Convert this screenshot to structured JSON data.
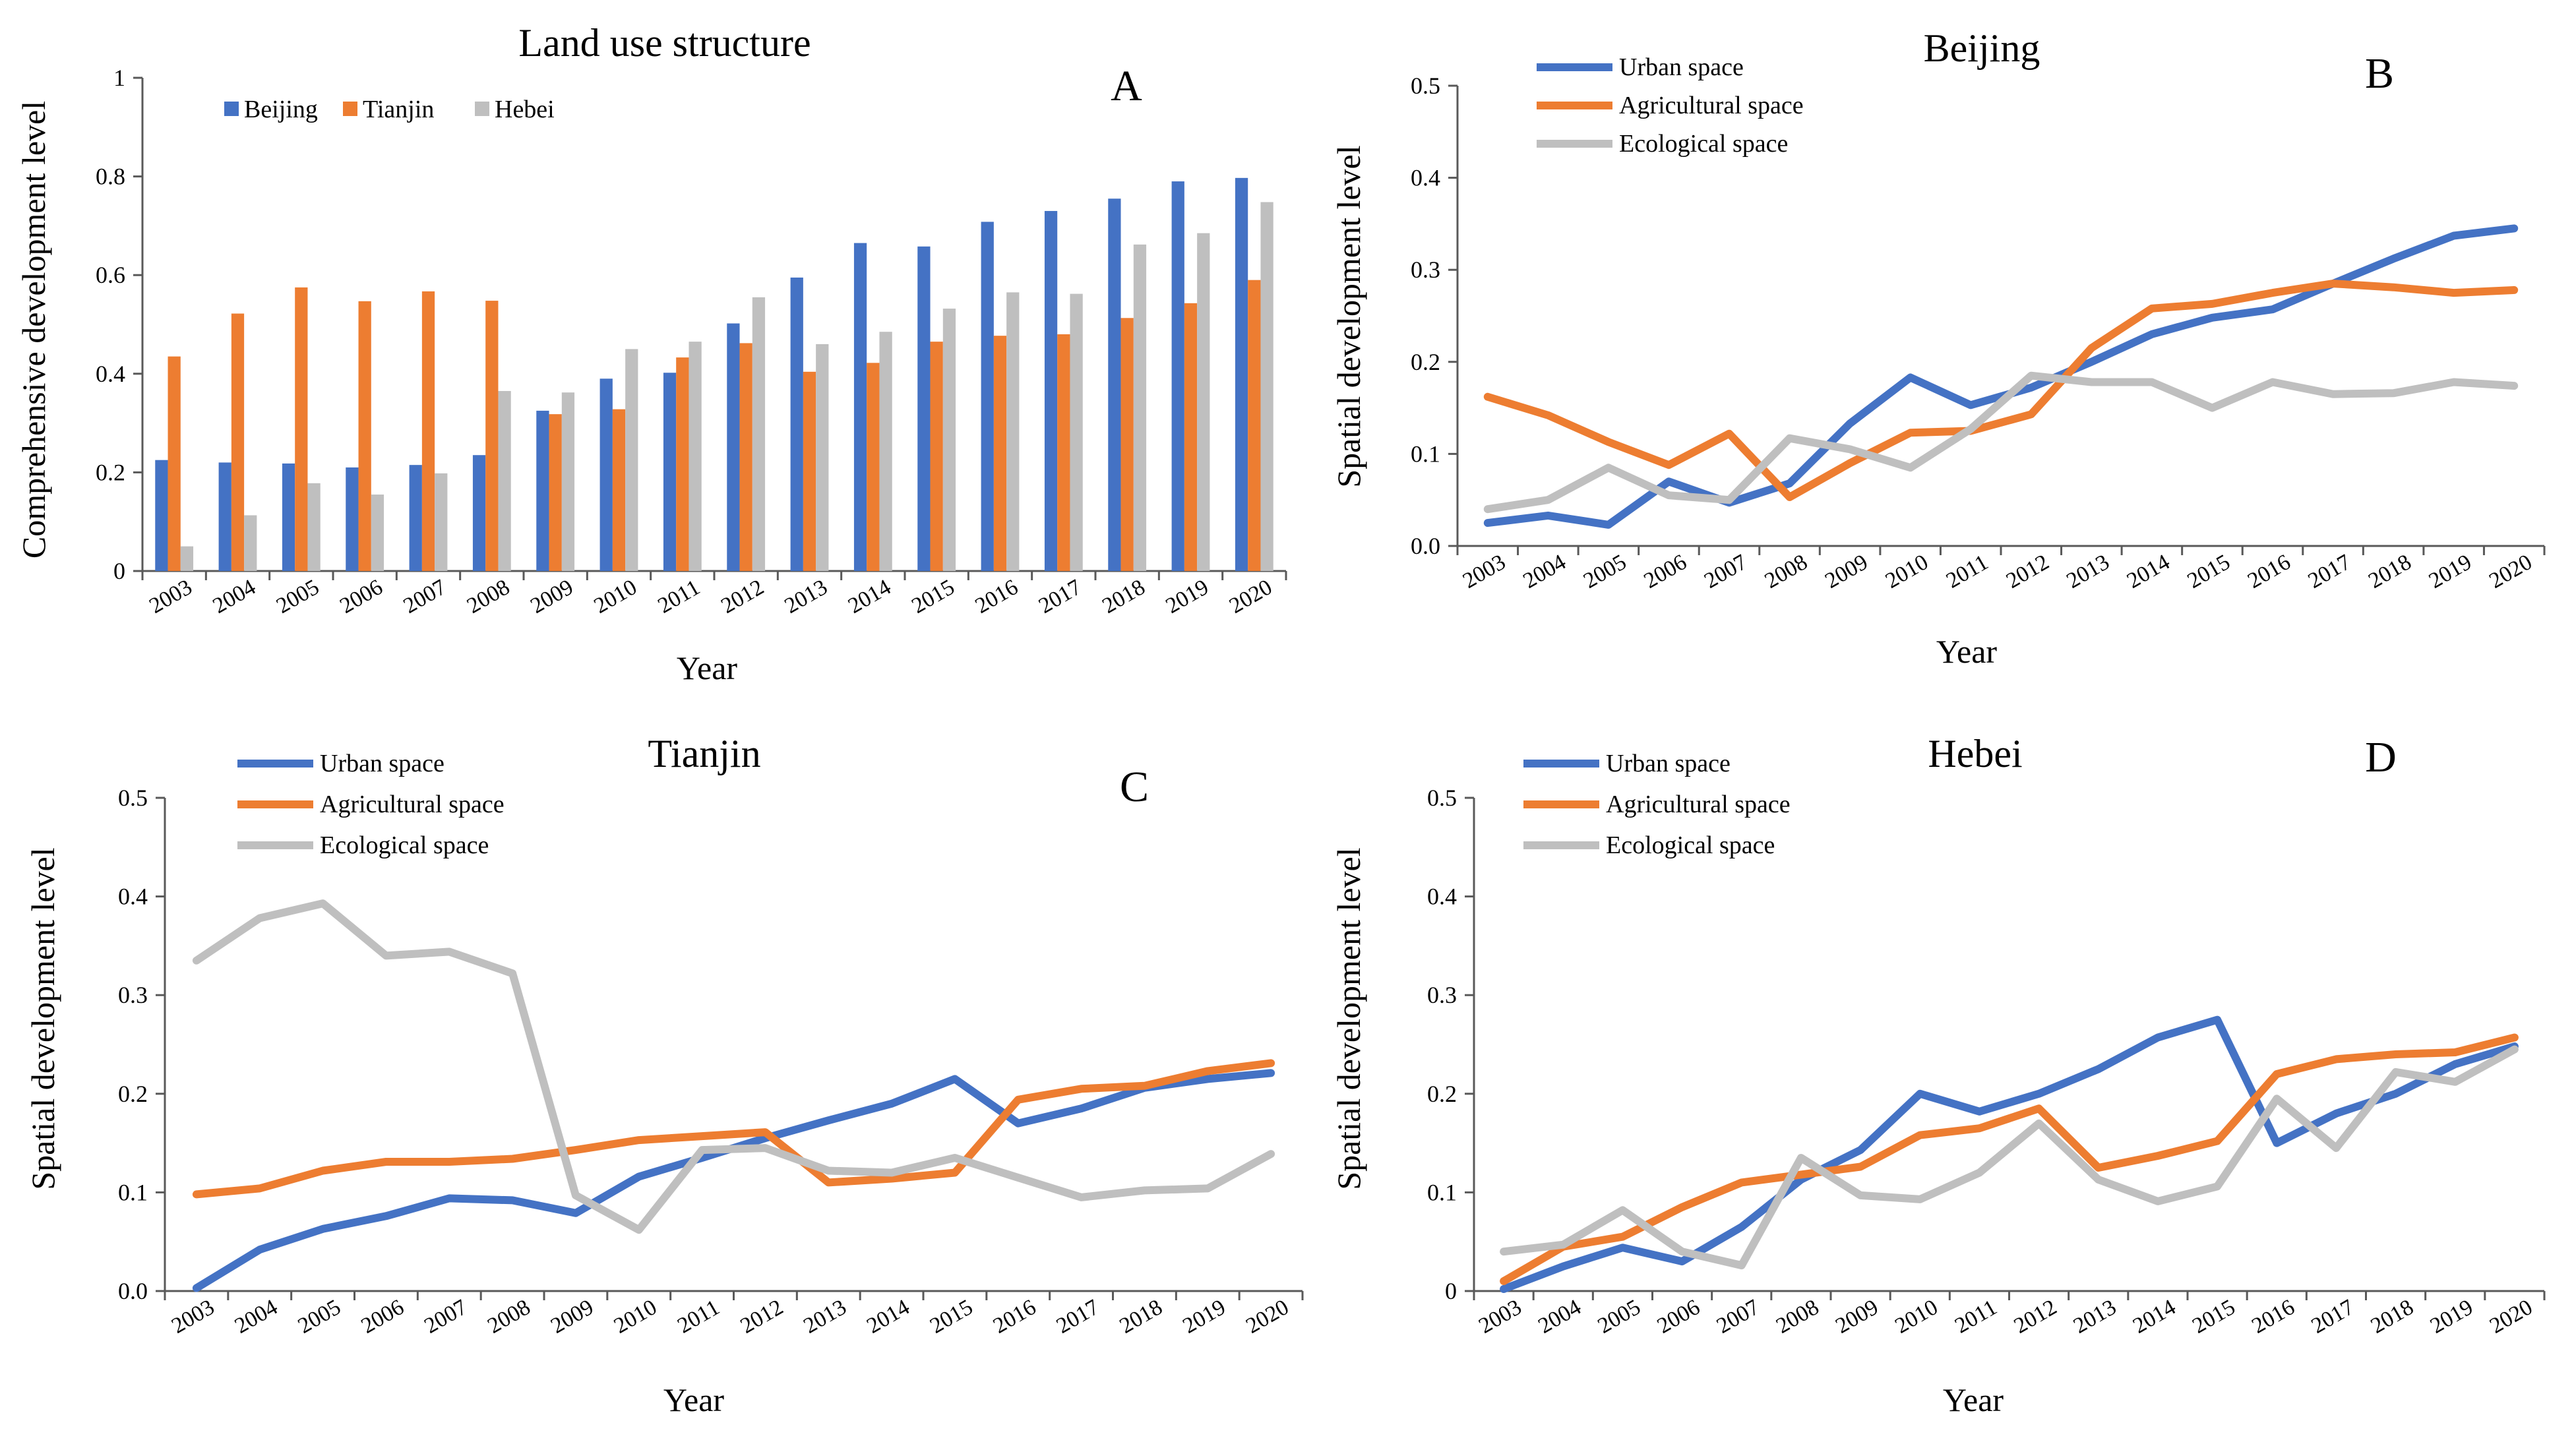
{
  "colors": {
    "beijing": "#4472C4",
    "tianjin": "#ED7D31",
    "hebei": "#BFBFBF",
    "urban": "#4472C4",
    "agricultural": "#ED7D31",
    "ecological": "#BFBFBF",
    "axis": "#595959"
  },
  "chart_data": [
    {
      "id": "A",
      "type": "bar",
      "panel_letter": "A",
      "title": "Land use structure",
      "xlabel": "Year",
      "ylabel": "Comprehensive development level",
      "ylim": [
        0,
        1
      ],
      "yticks": [
        "0",
        "0.2",
        "0.4",
        "0.6",
        "0.8",
        "1"
      ],
      "grid": false,
      "legend_position": "top-left",
      "categories": [
        "2003",
        "2004",
        "2005",
        "2006",
        "2007",
        "2008",
        "2009",
        "2010",
        "2011",
        "2012",
        "2013",
        "2014",
        "2015",
        "2016",
        "2017",
        "2018",
        "2019",
        "2020"
      ],
      "series": [
        {
          "name": "Beijing",
          "color_key": "beijing",
          "values": [
            0.225,
            0.22,
            0.218,
            0.21,
            0.215,
            0.235,
            0.325,
            0.39,
            0.402,
            0.502,
            0.595,
            0.665,
            0.658,
            0.708,
            0.73,
            0.755,
            0.79,
            0.797
          ]
        },
        {
          "name": "Tianjin",
          "color_key": "tianjin",
          "values": [
            0.435,
            0.522,
            0.575,
            0.547,
            0.567,
            0.548,
            0.318,
            0.328,
            0.433,
            0.462,
            0.404,
            0.422,
            0.465,
            0.477,
            0.48,
            0.513,
            0.543,
            0.59
          ]
        },
        {
          "name": "Hebei",
          "color_key": "hebei",
          "values": [
            0.05,
            0.113,
            0.178,
            0.155,
            0.198,
            0.365,
            0.362,
            0.45,
            0.465,
            0.555,
            0.46,
            0.485,
            0.532,
            0.565,
            0.562,
            0.662,
            0.685,
            0.748
          ]
        }
      ]
    },
    {
      "id": "B",
      "type": "line",
      "panel_letter": "B",
      "title": "Beijing",
      "xlabel": "Year",
      "ylabel": "Spatial development level",
      "ylim": [
        0,
        0.5
      ],
      "yticks": [
        "0.0",
        "0.1",
        "0.2",
        "0.3",
        "0.4",
        "0.5"
      ],
      "grid": false,
      "legend_position": "top-left",
      "categories": [
        "2003",
        "2004",
        "2005",
        "2006",
        "2007",
        "2008",
        "2009",
        "2010",
        "2011",
        "2012",
        "2013",
        "2014",
        "2015",
        "2016",
        "2017",
        "2018",
        "2019",
        "2020"
      ],
      "series": [
        {
          "name": "Urban space",
          "color_key": "urban",
          "values": [
            0.025,
            0.033,
            0.023,
            0.07,
            0.047,
            0.068,
            0.133,
            0.183,
            0.153,
            0.172,
            0.2,
            0.23,
            0.248,
            0.257,
            0.285,
            0.312,
            0.337,
            0.345
          ]
        },
        {
          "name": "Agricultural space",
          "color_key": "agricultural",
          "values": [
            0.162,
            0.142,
            0.113,
            0.088,
            0.122,
            0.053,
            0.09,
            0.123,
            0.125,
            0.143,
            0.215,
            0.258,
            0.263,
            0.275,
            0.285,
            0.281,
            0.275,
            0.278
          ]
        },
        {
          "name": "Ecological space",
          "color_key": "ecological",
          "values": [
            0.04,
            0.05,
            0.085,
            0.055,
            0.05,
            0.117,
            0.105,
            0.085,
            0.127,
            0.185,
            0.178,
            0.178,
            0.15,
            0.178,
            0.165,
            0.166,
            0.178,
            0.174
          ]
        }
      ]
    },
    {
      "id": "C",
      "type": "line",
      "panel_letter": "C",
      "title": "Tianjin",
      "xlabel": "Year",
      "ylabel": "Spatial development level",
      "ylim": [
        0,
        0.5
      ],
      "yticks": [
        "0.0",
        "0.1",
        "0.2",
        "0.3",
        "0.4",
        "0.5"
      ],
      "grid": false,
      "legend_position": "top-left",
      "categories": [
        "2003",
        "2004",
        "2005",
        "2006",
        "2007",
        "2008",
        "2009",
        "2010",
        "2011",
        "2012",
        "2013",
        "2014",
        "2015",
        "2016",
        "2017",
        "2018",
        "2019",
        "2020"
      ],
      "series": [
        {
          "name": "Urban space",
          "color_key": "urban",
          "values": [
            0.003,
            0.042,
            0.063,
            0.076,
            0.094,
            0.092,
            0.079,
            0.116,
            0.135,
            0.155,
            0.173,
            0.19,
            0.215,
            0.17,
            0.185,
            0.206,
            0.215,
            0.221
          ]
        },
        {
          "name": "Agricultural space",
          "color_key": "agricultural",
          "values": [
            0.098,
            0.104,
            0.122,
            0.131,
            0.131,
            0.134,
            0.143,
            0.153,
            0.157,
            0.161,
            0.11,
            0.114,
            0.12,
            0.194,
            0.205,
            0.208,
            0.223,
            0.231
          ]
        },
        {
          "name": "Ecological space",
          "color_key": "ecological",
          "values": [
            0.335,
            0.378,
            0.393,
            0.34,
            0.344,
            0.322,
            0.097,
            0.062,
            0.143,
            0.145,
            0.122,
            0.12,
            0.135,
            0.115,
            0.095,
            0.102,
            0.104,
            0.139
          ]
        }
      ]
    },
    {
      "id": "D",
      "type": "line",
      "panel_letter": "D",
      "title": "Hebei",
      "xlabel": "Year",
      "ylabel": "Spatial development level",
      "ylim": [
        0,
        0.5
      ],
      "yticks": [
        "0",
        "0.1",
        "0.2",
        "0.3",
        "0.4",
        "0.5"
      ],
      "grid": false,
      "legend_position": "top-left",
      "categories": [
        "2003",
        "2004",
        "2005",
        "2006",
        "2007",
        "2008",
        "2009",
        "2010",
        "2011",
        "2012",
        "2013",
        "2014",
        "2015",
        "2016",
        "2017",
        "2018",
        "2019",
        "2020"
      ],
      "series": [
        {
          "name": "Urban space",
          "color_key": "urban",
          "values": [
            0.002,
            0.025,
            0.044,
            0.03,
            0.065,
            0.113,
            0.143,
            0.2,
            0.182,
            0.2,
            0.225,
            0.257,
            0.275,
            0.15,
            0.18,
            0.2,
            0.23,
            0.248
          ]
        },
        {
          "name": "Agricultural space",
          "color_key": "agricultural",
          "values": [
            0.01,
            0.045,
            0.055,
            0.085,
            0.11,
            0.118,
            0.126,
            0.158,
            0.165,
            0.185,
            0.125,
            0.137,
            0.152,
            0.22,
            0.235,
            0.24,
            0.242,
            0.257
          ]
        },
        {
          "name": "Ecological space",
          "color_key": "ecological",
          "values": [
            0.04,
            0.047,
            0.082,
            0.04,
            0.026,
            0.135,
            0.097,
            0.093,
            0.12,
            0.17,
            0.113,
            0.091,
            0.106,
            0.195,
            0.145,
            0.222,
            0.212,
            0.245
          ]
        }
      ]
    }
  ]
}
